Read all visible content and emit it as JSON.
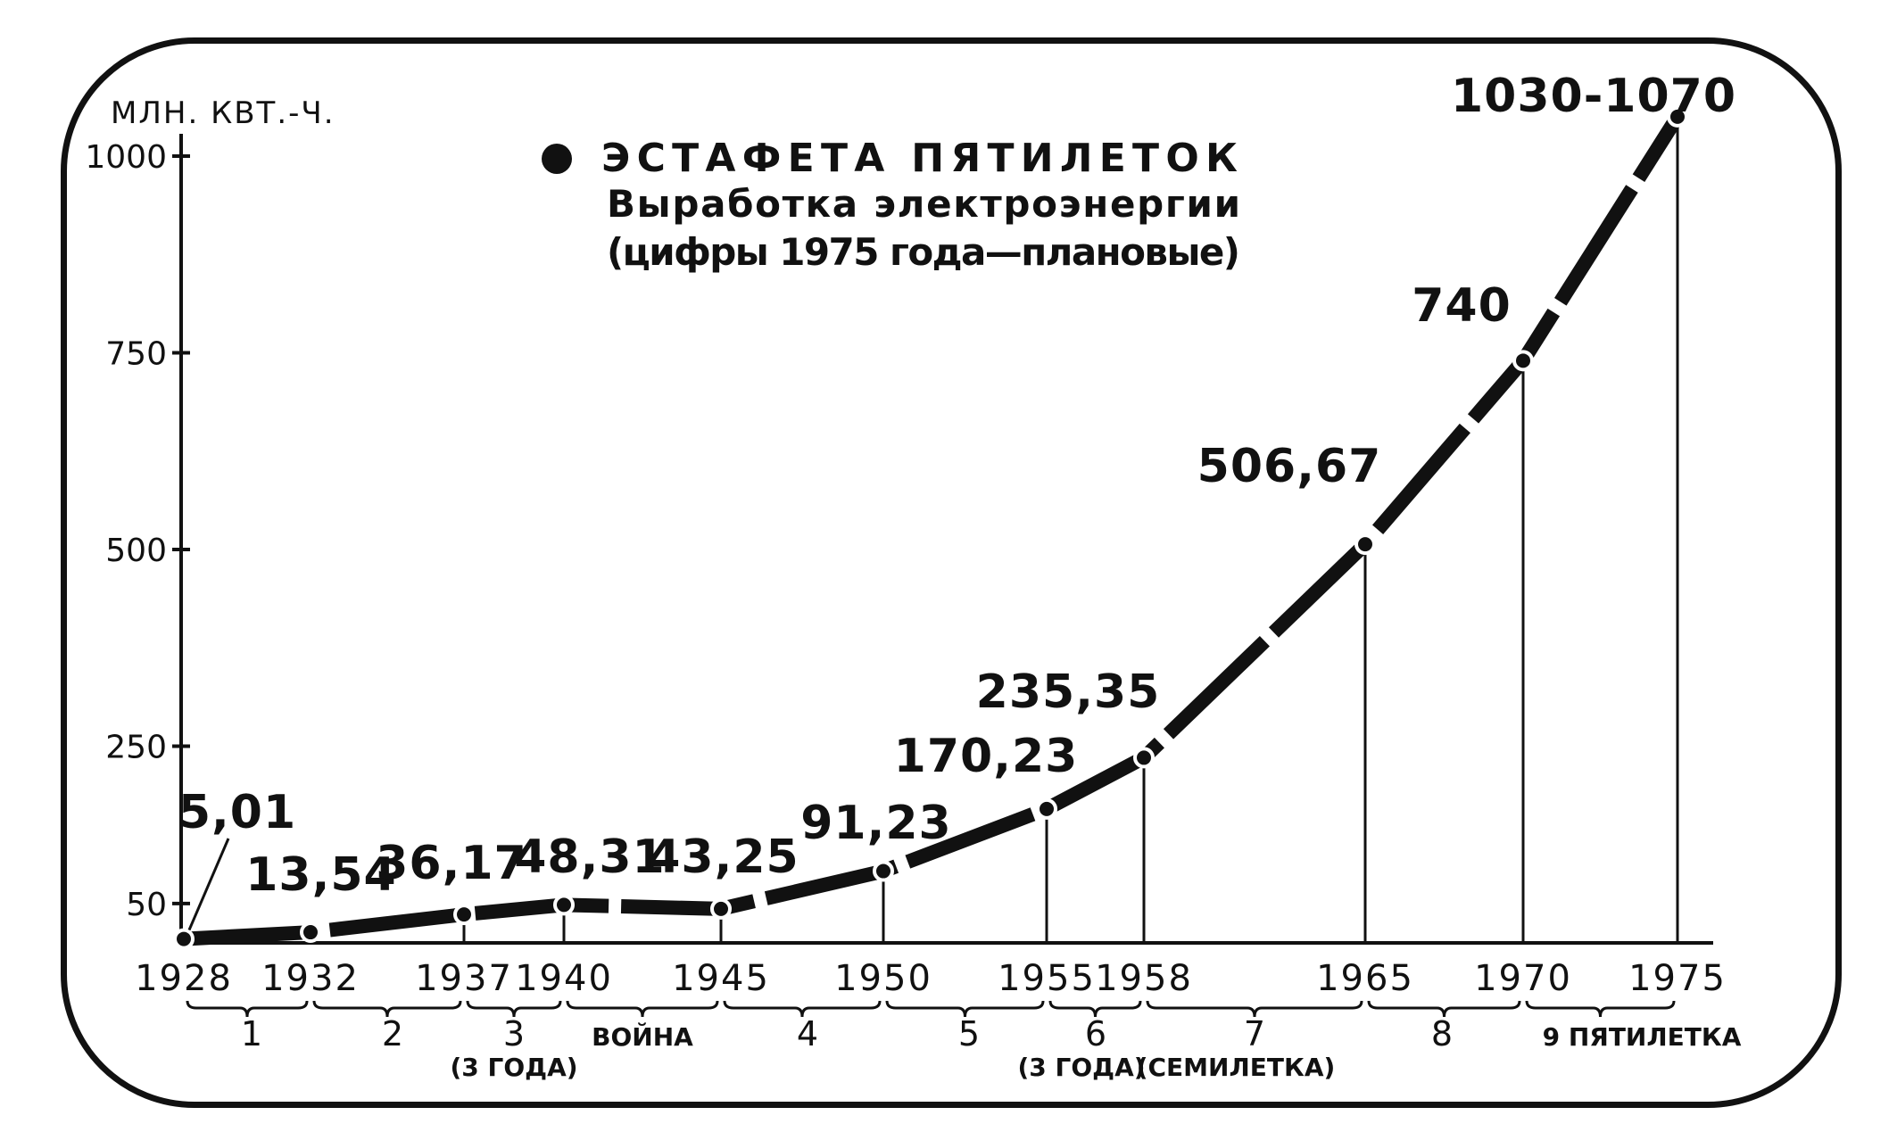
{
  "chart_data": {
    "type": "line",
    "title": "ЭСТАФЕТА ПЯТИЛЕТОК",
    "subtitle": [
      "Выработка электроэнергии",
      "(цифры 1975 года—плановые)"
    ],
    "ylabel": "МЛН. КВТ.-Ч.",
    "ylim": [
      0,
      1050
    ],
    "yticks": [
      {
        "value": 50,
        "label": "50"
      },
      {
        "value": 250,
        "label": "250"
      },
      {
        "value": 500,
        "label": "500"
      },
      {
        "value": 750,
        "label": "750"
      },
      {
        "value": 1000,
        "label": "1000"
      }
    ],
    "points": [
      {
        "year": 1928,
        "value": 5.01,
        "label": "5,01"
      },
      {
        "year": 1932,
        "value": 13.54,
        "label": "13,54"
      },
      {
        "year": 1937,
        "value": 36.17,
        "label": "36,17"
      },
      {
        "year": 1940,
        "value": 48.31,
        "label": "48,31"
      },
      {
        "year": 1945,
        "value": 43.25,
        "label": "43,25"
      },
      {
        "year": 1950,
        "value": 91.23,
        "label": "91,23"
      },
      {
        "year": 1955,
        "value": 170.23,
        "label": "170,23"
      },
      {
        "year": 1958,
        "value": 235.35,
        "label": "235,35"
      },
      {
        "year": 1965,
        "value": 506.67,
        "label": "506,67"
      },
      {
        "year": 1970,
        "value": 740,
        "label": "740"
      },
      {
        "year": 1975,
        "value": 1050,
        "label": "1030-1070"
      }
    ],
    "x_tick_labels": [
      "1928",
      "1932",
      "1937",
      "1940",
      "1945",
      "1950",
      "1955",
      "1958",
      "1965",
      "1970",
      "1975"
    ],
    "periods": [
      {
        "label": "1",
        "note": ""
      },
      {
        "label": "2",
        "note": ""
      },
      {
        "label": "3",
        "note": "(3 ГОДА)"
      },
      {
        "label": "ВОЙНА",
        "note": ""
      },
      {
        "label": "4",
        "note": ""
      },
      {
        "label": "5",
        "note": ""
      },
      {
        "label": "6",
        "note": "(3 ГОДА)"
      },
      {
        "label": "7",
        "note": "(СЕМИЛЕТКА)"
      },
      {
        "label": "8",
        "note": ""
      },
      {
        "label": "9 ПЯТИЛЕТКА",
        "note": ""
      }
    ],
    "colors": {
      "ink": "#111111",
      "background": "#ffffff"
    }
  }
}
